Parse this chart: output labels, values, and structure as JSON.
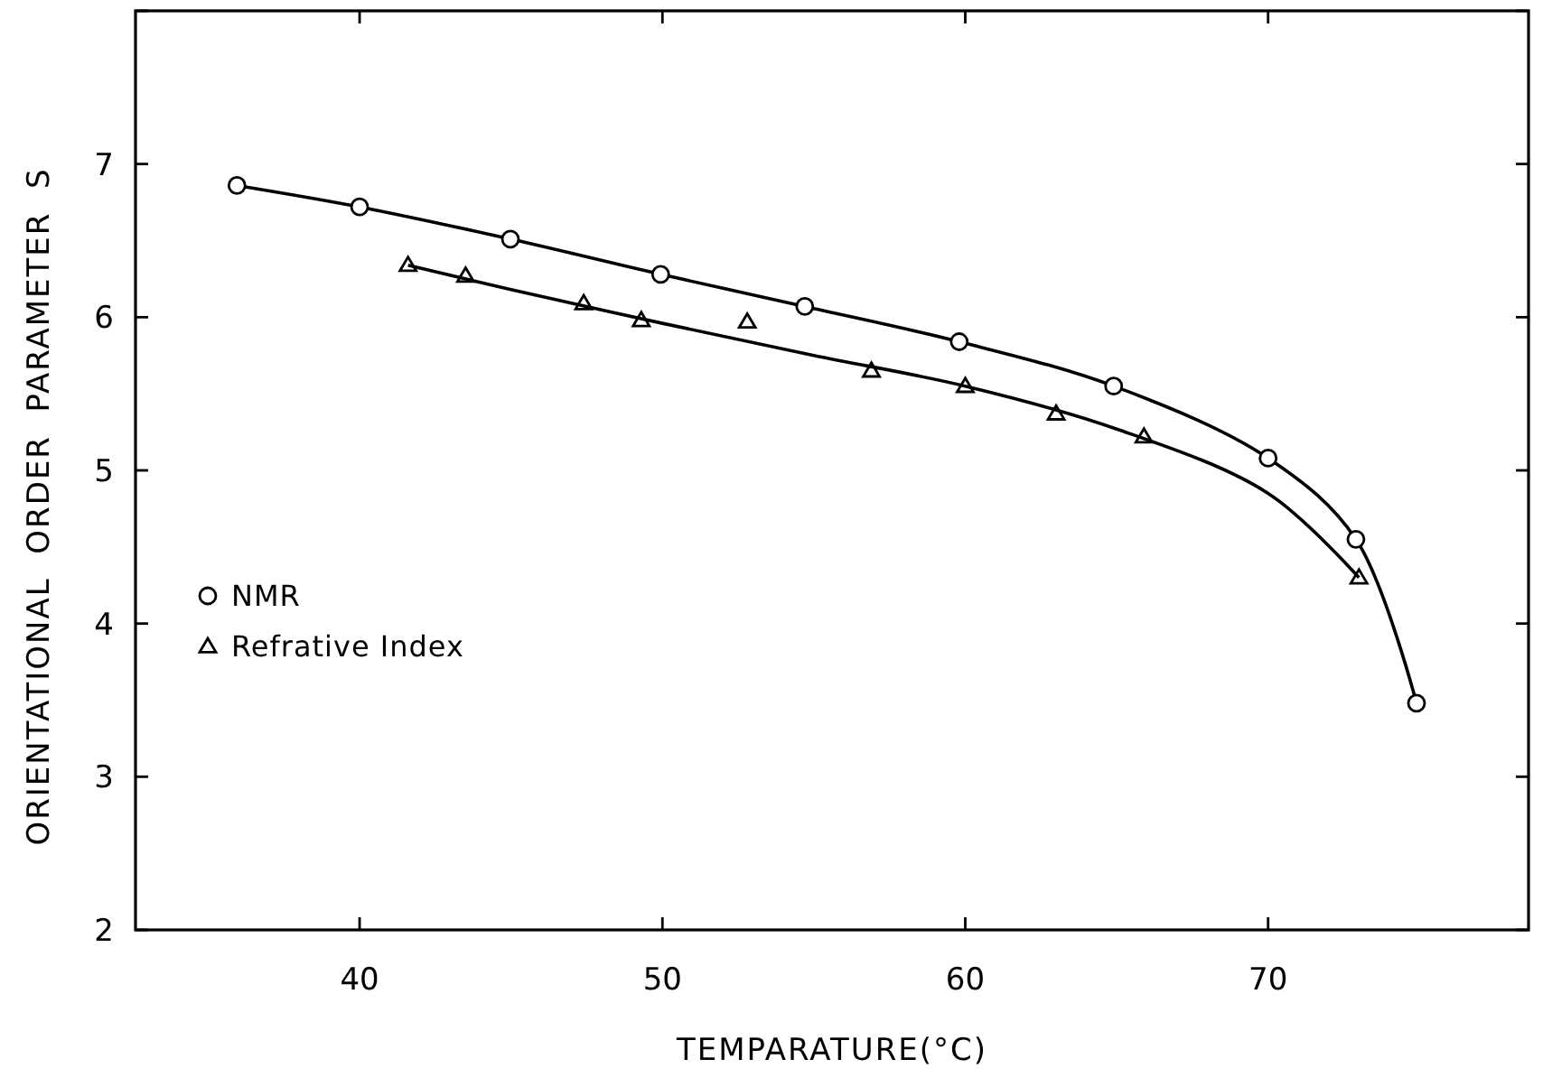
{
  "chart_data": {
    "type": "scatter",
    "xlabel": "TEMPARATURE(°C)",
    "ylabel": "ORIENTATIONAL  ORDER  PARAMETER  S",
    "xlim": [
      32.6,
      78.6
    ],
    "xticks": [
      40,
      50,
      60,
      70
    ],
    "ylim": [
      2,
      8
    ],
    "yticks": [
      2,
      3,
      4,
      5,
      6,
      7,
      {
        "value": 8,
        "label": null
      }
    ],
    "grid": false,
    "legend": "left",
    "series": [
      {
        "name": "NMR",
        "type": "line",
        "marker": "circle",
        "color": "#000000",
        "x": [
          35.95,
          40,
          44.98,
          49.94,
          54.7,
          59.8,
          64.9,
          70.0,
          72.9,
          74.9
        ],
        "values": [
          6.86,
          6.72,
          6.51,
          6.28,
          6.07,
          5.84,
          5.55,
          5.08,
          4.55,
          3.48
        ]
      },
      {
        "name": "Refrative Index",
        "marker": "triangle",
        "color": "#000000",
        "x": [
          41.6,
          43.5,
          47.4,
          49.3,
          52.8,
          56.9,
          60.0,
          63.0,
          65.9,
          73.0
        ],
        "values": [
          6.34,
          6.27,
          6.09,
          5.98,
          5.97,
          5.65,
          5.55,
          5.37,
          5.22,
          4.3
        ]
      },
      {
        "type": "line",
        "marker": "none",
        "color": "#000000",
        "x": [
          41.6,
          45,
          50,
          55,
          60,
          65,
          70,
          73
        ],
        "values": [
          6.34,
          6.18,
          5.96,
          5.75,
          5.55,
          5.27,
          4.85,
          4.3
        ]
      }
    ]
  }
}
